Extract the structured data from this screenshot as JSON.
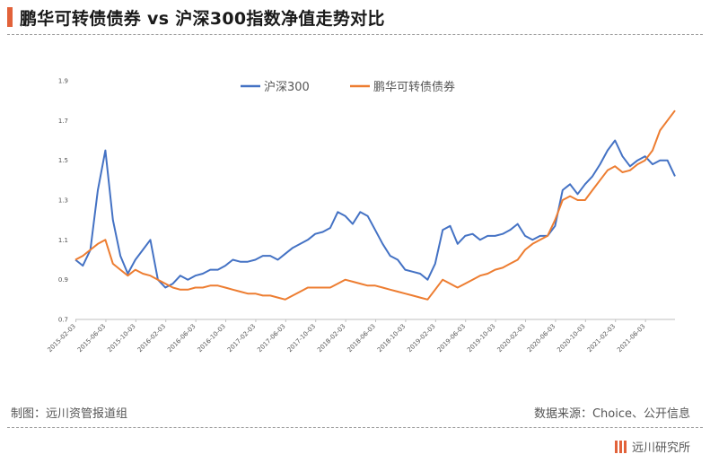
{
  "header": {
    "title": "鹏华可转债债券 vs 沪深300指数净值走势对比"
  },
  "footer": {
    "left": "制图：远川资管报道组",
    "right": "数据来源：Choice、公开信息"
  },
  "brand": {
    "name": "远川研究所"
  },
  "colors": {
    "accent": "#e2623a",
    "series1": "#4472c4",
    "series2": "#ed7d31"
  },
  "chart_data": {
    "type": "line",
    "title": "",
    "xlabel": "",
    "ylabel": "",
    "ylim": [
      0.7,
      1.9
    ],
    "yticks": [
      "0.7",
      "0.9",
      "1.1",
      "1.3",
      "1.5",
      "1.7",
      "1.9"
    ],
    "grid": false,
    "legend": "top-center",
    "x_ticks": [
      "2015-02-03",
      "2015-06-03",
      "2015-10-03",
      "2016-02-03",
      "2016-06-03",
      "2016-10-03",
      "2017-02-03",
      "2017-06-03",
      "2017-10-03",
      "2018-02-03",
      "2018-06-03",
      "2018-10-03",
      "2019-02-03",
      "2019-06-03",
      "2019-10-03",
      "2020-02-03",
      "2020-06-03",
      "2020-10-03",
      "2021-02-03",
      "2021-06-03"
    ],
    "x": [
      "2015-02",
      "2015-03",
      "2015-04",
      "2015-05",
      "2015-06",
      "2015-07",
      "2015-08",
      "2015-09",
      "2015-10",
      "2015-11",
      "2015-12",
      "2016-01",
      "2016-02",
      "2016-03",
      "2016-04",
      "2016-05",
      "2016-06",
      "2016-07",
      "2016-08",
      "2016-09",
      "2016-10",
      "2016-11",
      "2016-12",
      "2017-01",
      "2017-02",
      "2017-03",
      "2017-04",
      "2017-05",
      "2017-06",
      "2017-07",
      "2017-08",
      "2017-09",
      "2017-10",
      "2017-11",
      "2017-12",
      "2018-01",
      "2018-02",
      "2018-03",
      "2018-04",
      "2018-05",
      "2018-06",
      "2018-07",
      "2018-08",
      "2018-09",
      "2018-10",
      "2018-11",
      "2018-12",
      "2019-01",
      "2019-02",
      "2019-03",
      "2019-04",
      "2019-05",
      "2019-06",
      "2019-07",
      "2019-08",
      "2019-09",
      "2019-10",
      "2019-11",
      "2019-12",
      "2020-01",
      "2020-02",
      "2020-03",
      "2020-04",
      "2020-05",
      "2020-06",
      "2020-07",
      "2020-08",
      "2020-09",
      "2020-10",
      "2020-11",
      "2020-12",
      "2021-01",
      "2021-02",
      "2021-03",
      "2021-04",
      "2021-05",
      "2021-06",
      "2021-07",
      "2021-08",
      "2021-09",
      "2021-10"
    ],
    "series": [
      {
        "name": "沪深300",
        "color": "#4472c4",
        "values": [
          1.0,
          0.97,
          1.05,
          1.35,
          1.55,
          1.2,
          1.02,
          0.93,
          1.0,
          1.05,
          1.1,
          0.9,
          0.86,
          0.88,
          0.92,
          0.9,
          0.92,
          0.93,
          0.95,
          0.95,
          0.97,
          1.0,
          0.99,
          0.99,
          1.0,
          1.02,
          1.02,
          1.0,
          1.03,
          1.06,
          1.08,
          1.1,
          1.13,
          1.14,
          1.16,
          1.24,
          1.22,
          1.18,
          1.24,
          1.22,
          1.15,
          1.08,
          1.02,
          1.0,
          0.95,
          0.94,
          0.93,
          0.9,
          0.98,
          1.15,
          1.17,
          1.08,
          1.12,
          1.13,
          1.1,
          1.12,
          1.12,
          1.13,
          1.15,
          1.18,
          1.12,
          1.1,
          1.12,
          1.12,
          1.17,
          1.35,
          1.38,
          1.33,
          1.38,
          1.42,
          1.48,
          1.55,
          1.6,
          1.52,
          1.47,
          1.5,
          1.52,
          1.48,
          1.5,
          1.5,
          1.42
        ]
      },
      {
        "name": "鹏华可转债债券",
        "color": "#ed7d31",
        "values": [
          1.0,
          1.02,
          1.05,
          1.08,
          1.1,
          0.98,
          0.95,
          0.92,
          0.95,
          0.93,
          0.92,
          0.9,
          0.88,
          0.86,
          0.85,
          0.85,
          0.86,
          0.86,
          0.87,
          0.87,
          0.86,
          0.85,
          0.84,
          0.83,
          0.83,
          0.82,
          0.82,
          0.81,
          0.8,
          0.82,
          0.84,
          0.86,
          0.86,
          0.86,
          0.86,
          0.88,
          0.9,
          0.89,
          0.88,
          0.87,
          0.87,
          0.86,
          0.85,
          0.84,
          0.83,
          0.82,
          0.81,
          0.8,
          0.85,
          0.9,
          0.88,
          0.86,
          0.88,
          0.9,
          0.92,
          0.93,
          0.95,
          0.96,
          0.98,
          1.0,
          1.05,
          1.08,
          1.1,
          1.12,
          1.2,
          1.3,
          1.32,
          1.3,
          1.3,
          1.35,
          1.4,
          1.45,
          1.47,
          1.44,
          1.45,
          1.48,
          1.5,
          1.55,
          1.65,
          1.7,
          1.75
        ]
      }
    ]
  }
}
